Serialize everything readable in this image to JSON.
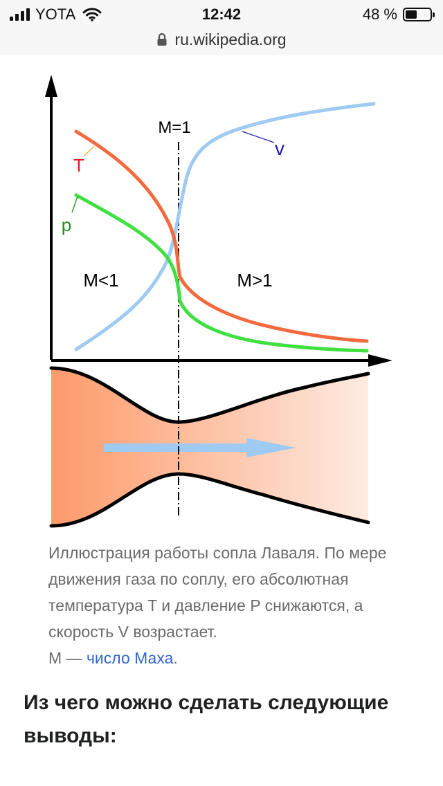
{
  "status_bar": {
    "carrier": "YOTA",
    "time": "12:42",
    "battery_percent": "48 %",
    "battery_level": 0.48
  },
  "browser": {
    "url": "ru.wikipedia.org"
  },
  "figure": {
    "labels": {
      "m_equals_1": "M=1",
      "temperature": "T",
      "pressure": "p",
      "velocity": "v",
      "subsonic": "M<1",
      "supersonic": "M>1"
    },
    "colors": {
      "temperature": "#f26a3d",
      "pressure": "#3fe03f",
      "velocity": "#9fcaf2",
      "nozzle_gradient_start": "#fd9a6a",
      "nozzle_gradient_end": "#fdebe1",
      "flow_arrow": "#9fcaf2"
    }
  },
  "caption": {
    "line_text": "Иллюстрация работы сопла Лаваля. По мере движения газа по соплу, его абсолютная температура T и давление P снижаются, а скорость V возрастает.",
    "mach_prefix": "M — ",
    "mach_link": "число Маха",
    "mach_suffix": "."
  },
  "section": {
    "heading": "Из чего можно сделать следующие выводы:"
  }
}
